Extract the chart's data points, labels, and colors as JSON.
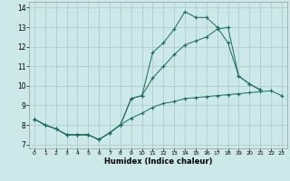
{
  "xlabel": "Humidex (Indice chaleur)",
  "bg_color": "#cce8e8",
  "grid_color": "#b0cccc",
  "line_color": "#1a6b5a",
  "xlim": [
    -0.5,
    23.5
  ],
  "ylim": [
    6.8,
    14.3
  ],
  "xticks": [
    0,
    1,
    2,
    3,
    4,
    5,
    6,
    7,
    8,
    9,
    10,
    11,
    12,
    13,
    14,
    15,
    16,
    17,
    18,
    19,
    20,
    21,
    22,
    23
  ],
  "yticks": [
    7,
    8,
    9,
    10,
    11,
    12,
    13,
    14
  ],
  "line1": {
    "x": [
      0,
      1,
      2,
      3,
      4,
      5,
      6,
      7,
      8,
      9,
      10,
      11,
      12,
      13,
      14,
      15,
      16,
      17,
      18,
      19,
      20,
      21,
      22,
      23
    ],
    "y": [
      8.3,
      8.0,
      7.8,
      7.5,
      7.5,
      7.5,
      7.25,
      7.6,
      8.0,
      8.35,
      8.6,
      8.9,
      9.1,
      9.2,
      9.35,
      9.4,
      9.45,
      9.5,
      9.55,
      9.6,
      9.65,
      9.7,
      9.75,
      9.5
    ]
  },
  "line2": {
    "x": [
      0,
      1,
      2,
      3,
      4,
      5,
      6,
      7,
      8,
      9,
      10,
      11,
      12,
      13,
      14,
      15,
      16,
      17,
      18,
      19,
      20,
      21
    ],
    "y": [
      8.3,
      8.0,
      7.8,
      7.5,
      7.5,
      7.5,
      7.25,
      7.6,
      8.0,
      9.35,
      9.5,
      10.4,
      11.0,
      11.6,
      12.1,
      12.3,
      12.5,
      12.9,
      13.0,
      10.5,
      10.1,
      9.8
    ]
  },
  "line3": {
    "x": [
      0,
      1,
      2,
      3,
      4,
      5,
      6,
      7,
      8,
      9,
      10,
      11,
      12,
      13,
      14,
      15,
      16,
      17,
      18,
      19,
      20,
      21
    ],
    "y": [
      8.3,
      8.0,
      7.8,
      7.5,
      7.5,
      7.5,
      7.25,
      7.6,
      8.0,
      9.35,
      9.5,
      11.7,
      12.2,
      12.9,
      13.8,
      13.5,
      13.5,
      13.0,
      12.2,
      10.5,
      10.1,
      9.8
    ]
  }
}
